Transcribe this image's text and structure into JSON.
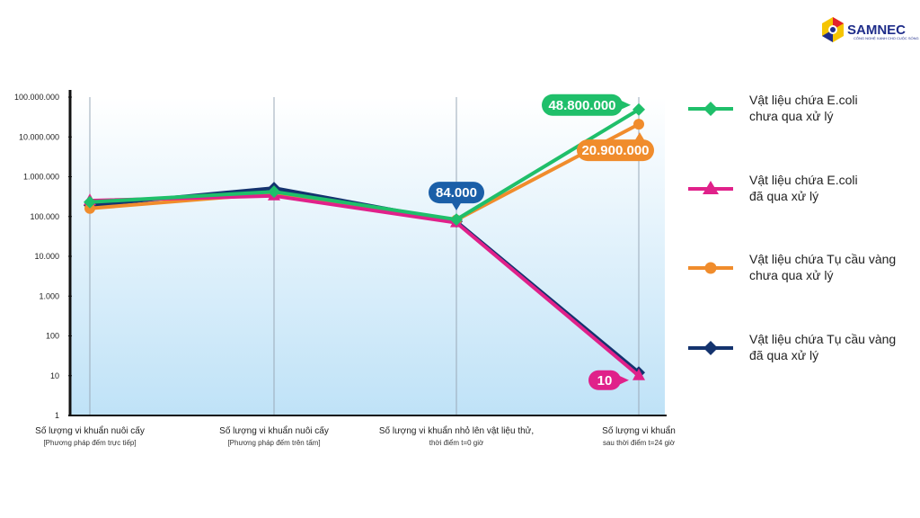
{
  "logo": {
    "name": "SAMNEC",
    "tagline": "CÔNG NGHỆ XANH CHO CUỘC SỐNG"
  },
  "chart_data": {
    "type": "line",
    "yscale": "log",
    "ylim": [
      1,
      100000000
    ],
    "yticks": [
      "100.000.000",
      "10.000.000",
      "1.000.000",
      "100.000",
      "10.000",
      "1.000",
      "100",
      "10",
      "1"
    ],
    "categories": [
      {
        "main": "Số lượng vi khuẩn nuôi cấy",
        "sub": "[Phương pháp đếm trực tiếp]"
      },
      {
        "main": "Số lượng vi khuẩn nuôi cấy",
        "sub": "[Phương pháp đếm trên tấm]"
      },
      {
        "main": "Số lượng vi khuẩn nhỏ lên vật liệu thử,",
        "sub": "thời điểm t=0 giờ"
      },
      {
        "main": "Số lượng vi khuẩn",
        "sub": "sau thời điểm t=24 giờ"
      }
    ],
    "grid": "vertical",
    "legend_position": "right",
    "series": [
      {
        "name_line1": "Vật liệu chứa E.coli",
        "name_line2": "chưa qua xử lý",
        "color": "#1fbf6a",
        "marker": "diamond",
        "values": [
          230000,
          420000,
          84000,
          48800000
        ]
      },
      {
        "name_line1": "Vật liệu chứa E.coli",
        "name_line2": "đã qua xử lý",
        "color": "#e0218a",
        "marker": "triangle",
        "values": [
          250000,
          330000,
          70000,
          10
        ]
      },
      {
        "name_line1": "Vật liệu chứa Tụ cầu vàng",
        "name_line2": "chưa qua xử lý",
        "color": "#f08c2c",
        "marker": "circle",
        "values": [
          160000,
          380000,
          82000,
          20900000
        ]
      },
      {
        "name_line1": "Vật liệu chứa Tụ cầu vàng",
        "name_line2": "đã qua xử lý",
        "color": "#14336e",
        "marker": "diamond",
        "values": [
          190000,
          520000,
          75000,
          12
        ]
      }
    ],
    "annotations": [
      {
        "text": "48.800.000",
        "color": "#1fbf6a",
        "series": 0,
        "point": 3
      },
      {
        "text": "20.900.000",
        "color": "#f08c2c",
        "series": 2,
        "point": 3
      },
      {
        "text": "84.000",
        "color": "#1b5fa8",
        "series": 0,
        "point": 2
      },
      {
        "text": "10",
        "color": "#e0218a",
        "series": 1,
        "point": 3
      }
    ]
  }
}
